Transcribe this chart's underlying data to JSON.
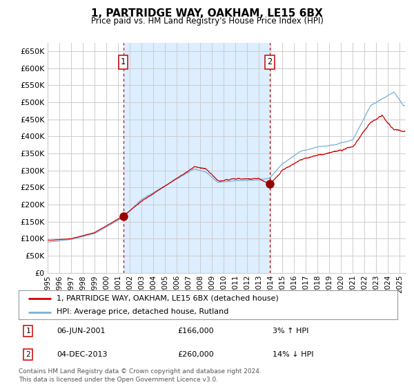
{
  "title": "1, PARTRIDGE WAY, OAKHAM, LE15 6BX",
  "subtitle": "Price paid vs. HM Land Registry's House Price Index (HPI)",
  "ytick_values": [
    0,
    50000,
    100000,
    150000,
    200000,
    250000,
    300000,
    350000,
    400000,
    450000,
    500000,
    550000,
    600000,
    650000
  ],
  "ylim": [
    0,
    675000
  ],
  "xlim_start": 1995.0,
  "xlim_end": 2025.5,
  "purchase1_date": 2001.44,
  "purchase1_price": 166000,
  "purchase2_date": 2013.92,
  "purchase2_price": 260000,
  "hpi_line_color": "#7ab0d4",
  "price_line_color": "#cc0000",
  "dot_color": "#990000",
  "vline_color": "#cc0000",
  "grid_color": "#cccccc",
  "shade_color": "#dceeff",
  "background_color": "#ffffff",
  "legend_line1": "1, PARTRIDGE WAY, OAKHAM, LE15 6BX (detached house)",
  "legend_line2": "HPI: Average price, detached house, Rutland",
  "annotation1_date": "06-JUN-2001",
  "annotation1_price": "£166,000",
  "annotation1_hpi": "3% ↑ HPI",
  "annotation2_date": "04-DEC-2013",
  "annotation2_price": "£260,000",
  "annotation2_hpi": "14% ↓ HPI",
  "footer": "Contains HM Land Registry data © Crown copyright and database right 2024.\nThis data is licensed under the Open Government Licence v3.0.",
  "xtick_years": [
    "1995",
    "1996",
    "1997",
    "1998",
    "1999",
    "2000",
    "2001",
    "2002",
    "2003",
    "2004",
    "2005",
    "2006",
    "2007",
    "2008",
    "2009",
    "2010",
    "2011",
    "2012",
    "2013",
    "2014",
    "2015",
    "2016",
    "2017",
    "2018",
    "2019",
    "2020",
    "2021",
    "2022",
    "2023",
    "2024",
    "2025"
  ]
}
